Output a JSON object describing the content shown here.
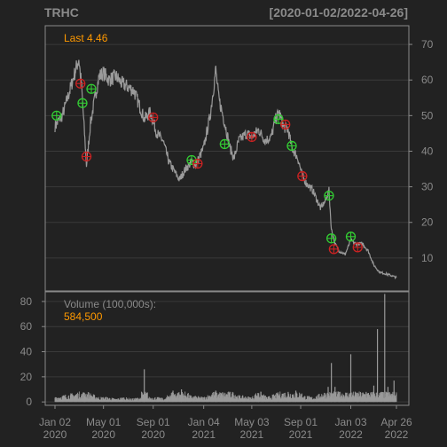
{
  "chart_data": {
    "type": "line",
    "title": "TRHC",
    "date_range": "[2020-01-02/2022-04-26]",
    "last_label": "Last 4.46",
    "volume_label": "Volume (100,000s):",
    "volume_value": "584,500",
    "price_axis": {
      "ticks": [
        10,
        20,
        30,
        40,
        50,
        60,
        70
      ],
      "ylim": [
        1,
        75
      ]
    },
    "volume_axis": {
      "ticks": [
        0,
        20,
        40,
        60,
        80
      ],
      "ylim": [
        -2,
        87
      ]
    },
    "x_axis": {
      "start": "2020-01-02",
      "end": "2022-04-26",
      "ticks": [
        {
          "date": "2020-01-02",
          "line1": "Jan 02",
          "line2": "2020"
        },
        {
          "date": "2020-05-01",
          "line1": "May 01",
          "line2": "2020"
        },
        {
          "date": "2020-09-01",
          "line1": "Sep 01",
          "line2": "2020"
        },
        {
          "date": "2021-01-04",
          "line1": "Jan 04",
          "line2": "2021"
        },
        {
          "date": "2021-05-03",
          "line1": "May 03",
          "line2": "2021"
        },
        {
          "date": "2021-09-01",
          "line1": "Sep 01",
          "line2": "2021"
        },
        {
          "date": "2022-01-03",
          "line1": "Jan 03",
          "line2": "2022"
        },
        {
          "date": "2022-04-26",
          "line1": "Apr 26",
          "line2": "2022"
        }
      ]
    },
    "price_series": [
      [
        "2020-01-02",
        47
      ],
      [
        "2020-01-20",
        50
      ],
      [
        "2020-02-05",
        56
      ],
      [
        "2020-02-20",
        62
      ],
      [
        "2020-03-01",
        66
      ],
      [
        "2020-03-08",
        58
      ],
      [
        "2020-03-15",
        45
      ],
      [
        "2020-03-20",
        36
      ],
      [
        "2020-03-30",
        48
      ],
      [
        "2020-04-10",
        55
      ],
      [
        "2020-04-20",
        61
      ],
      [
        "2020-05-01",
        62
      ],
      [
        "2020-05-15",
        60
      ],
      [
        "2020-06-01",
        61
      ],
      [
        "2020-06-15",
        59
      ],
      [
        "2020-07-01",
        58
      ],
      [
        "2020-07-15",
        57
      ],
      [
        "2020-08-01",
        52
      ],
      [
        "2020-08-10",
        49
      ],
      [
        "2020-08-25",
        51
      ],
      [
        "2020-09-10",
        45
      ],
      [
        "2020-09-25",
        43
      ],
      [
        "2020-10-10",
        37
      ],
      [
        "2020-10-25",
        34
      ],
      [
        "2020-11-05",
        32
      ],
      [
        "2020-11-20",
        35
      ],
      [
        "2020-12-05",
        37
      ],
      [
        "2020-12-15",
        36
      ],
      [
        "2021-01-04",
        41
      ],
      [
        "2021-01-20",
        50
      ],
      [
        "2021-02-03",
        63
      ],
      [
        "2021-02-10",
        55
      ],
      [
        "2021-02-25",
        48
      ],
      [
        "2021-03-10",
        41
      ],
      [
        "2021-03-20",
        38
      ],
      [
        "2021-04-01",
        43
      ],
      [
        "2021-04-20",
        45
      ],
      [
        "2021-05-03",
        44
      ],
      [
        "2021-05-20",
        46
      ],
      [
        "2021-06-05",
        43
      ],
      [
        "2021-06-20",
        44
      ],
      [
        "2021-07-01",
        49
      ],
      [
        "2021-07-10",
        51
      ],
      [
        "2021-07-20",
        47
      ],
      [
        "2021-08-01",
        46
      ],
      [
        "2021-08-10",
        41
      ],
      [
        "2021-08-25",
        38
      ],
      [
        "2021-09-05",
        33
      ],
      [
        "2021-09-15",
        31
      ],
      [
        "2021-10-01",
        29
      ],
      [
        "2021-10-20",
        24
      ],
      [
        "2021-11-01",
        26
      ],
      [
        "2021-11-10",
        29
      ],
      [
        "2021-11-16",
        18
      ],
      [
        "2021-11-25",
        14
      ],
      [
        "2021-12-05",
        12
      ],
      [
        "2021-12-20",
        11
      ],
      [
        "2022-01-03",
        15
      ],
      [
        "2022-01-15",
        14
      ],
      [
        "2022-02-01",
        14
      ],
      [
        "2022-02-15",
        12
      ],
      [
        "2022-03-01",
        8
      ],
      [
        "2022-03-15",
        6
      ],
      [
        "2022-04-01",
        5.5
      ],
      [
        "2022-04-15",
        5
      ],
      [
        "2022-04-26",
        4.46
      ]
    ],
    "volume_series": [
      [
        "2020-01-02",
        3
      ],
      [
        "2020-01-20",
        4
      ],
      [
        "2020-02-10",
        5
      ],
      [
        "2020-03-01",
        6
      ],
      [
        "2020-03-15",
        7
      ],
      [
        "2020-04-01",
        5
      ],
      [
        "2020-04-20",
        3
      ],
      [
        "2020-05-10",
        3
      ],
      [
        "2020-06-01",
        2
      ],
      [
        "2020-06-20",
        3
      ],
      [
        "2020-07-10",
        2
      ],
      [
        "2020-08-01",
        3
      ],
      [
        "2020-08-10",
        26
      ],
      [
        "2020-08-20",
        3
      ],
      [
        "2020-09-10",
        3
      ],
      [
        "2020-10-01",
        2
      ],
      [
        "2020-10-20",
        9
      ],
      [
        "2020-11-10",
        10
      ],
      [
        "2020-12-01",
        4
      ],
      [
        "2021-01-04",
        3
      ],
      [
        "2021-01-20",
        5
      ],
      [
        "2021-02-03",
        9
      ],
      [
        "2021-02-20",
        6
      ],
      [
        "2021-03-10",
        8
      ],
      [
        "2021-04-01",
        4
      ],
      [
        "2021-05-03",
        3
      ],
      [
        "2021-05-20",
        7
      ],
      [
        "2021-06-10",
        3
      ],
      [
        "2021-07-01",
        5
      ],
      [
        "2021-08-01",
        8
      ],
      [
        "2021-08-20",
        9
      ],
      [
        "2021-09-10",
        4
      ],
      [
        "2021-10-01",
        3
      ],
      [
        "2021-10-20",
        5
      ],
      [
        "2021-11-08",
        12
      ],
      [
        "2021-11-16",
        31
      ],
      [
        "2021-11-25",
        12
      ],
      [
        "2021-12-05",
        8
      ],
      [
        "2021-12-20",
        6
      ],
      [
        "2022-01-03",
        38
      ],
      [
        "2022-01-20",
        7
      ],
      [
        "2022-02-10",
        8
      ],
      [
        "2022-03-01",
        13
      ],
      [
        "2022-03-10",
        58
      ],
      [
        "2022-03-20",
        8
      ],
      [
        "2022-03-28",
        86
      ],
      [
        "2022-04-05",
        12
      ],
      [
        "2022-04-15",
        6
      ],
      [
        "2022-04-20",
        17
      ],
      [
        "2022-04-26",
        6
      ]
    ],
    "buy_markers": [
      [
        "2020-01-06",
        50
      ],
      [
        "2020-03-10",
        53.5
      ],
      [
        "2020-04-01",
        57.5
      ],
      [
        "2020-12-05",
        37.5
      ],
      [
        "2021-02-25",
        42
      ],
      [
        "2021-07-08",
        49
      ],
      [
        "2021-08-10",
        41.5
      ],
      [
        "2021-11-10",
        27.5
      ],
      [
        "2021-11-16",
        15.5
      ],
      [
        "2022-01-03",
        16
      ]
    ],
    "sell_markers": [
      [
        "2020-03-05",
        59
      ],
      [
        "2020-03-20",
        38.5
      ],
      [
        "2020-09-01",
        49.5
      ],
      [
        "2020-12-20",
        36.5
      ],
      [
        "2021-05-03",
        44
      ],
      [
        "2021-07-25",
        47.5
      ],
      [
        "2021-09-05",
        33
      ],
      [
        "2021-11-22",
        12.5
      ],
      [
        "2022-01-20",
        13
      ]
    ],
    "colors": {
      "background": "#222222",
      "price_line": "#9a9a9a",
      "volume": "#9a9a9a",
      "grid": "#3a3a3a",
      "axis": "#8a8a8a",
      "accent": "#ff9900",
      "buy": "#33cc33",
      "sell": "#cc2222"
    }
  }
}
